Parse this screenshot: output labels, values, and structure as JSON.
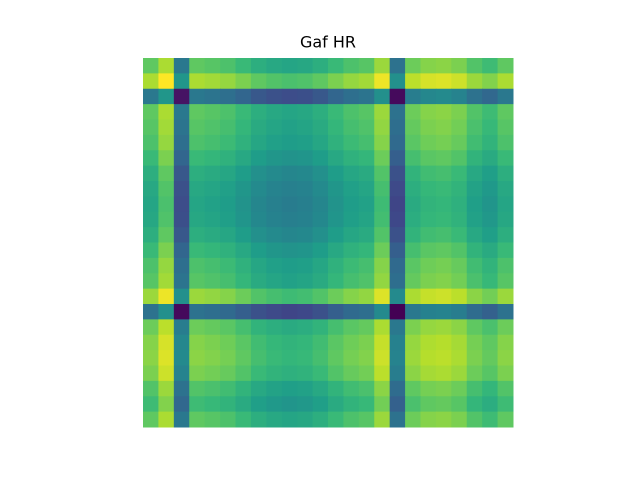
{
  "chart_data": {
    "type": "heatmap",
    "title": "Gaf HR",
    "colormap": "viridis",
    "zlim": [
      0,
      2
    ],
    "z": [
      [
        1.5,
        1.75,
        0.8,
        1.5,
        1.47,
        1.43,
        1.35,
        1.25,
        1.2,
        1.17,
        1.19,
        1.25,
        1.35,
        1.43,
        1.47,
        1.7,
        0.75,
        1.55,
        1.63,
        1.65,
        1.6,
        1.45,
        1.37,
        1.5
      ],
      [
        1.75,
        2.0,
        1.05,
        1.75,
        1.72,
        1.68,
        1.6,
        1.5,
        1.45,
        1.42,
        1.44,
        1.5,
        1.6,
        1.68,
        1.72,
        1.95,
        1.0,
        1.8,
        1.88,
        1.9,
        1.85,
        1.7,
        1.62,
        1.75
      ],
      [
        0.8,
        1.05,
        0.1,
        0.8,
        0.77,
        0.73,
        0.65,
        0.55,
        0.5,
        0.47,
        0.49,
        0.55,
        0.65,
        0.73,
        0.77,
        1.0,
        0.05,
        0.85,
        0.93,
        0.95,
        0.9,
        0.75,
        0.67,
        0.8
      ],
      [
        1.5,
        1.75,
        0.8,
        1.5,
        1.47,
        1.43,
        1.35,
        1.25,
        1.2,
        1.17,
        1.19,
        1.25,
        1.35,
        1.43,
        1.47,
        1.7,
        0.75,
        1.55,
        1.63,
        1.65,
        1.6,
        1.45,
        1.37,
        1.5
      ],
      [
        1.47,
        1.72,
        0.77,
        1.47,
        1.44,
        1.4,
        1.32,
        1.22,
        1.17,
        1.14,
        1.16,
        1.22,
        1.32,
        1.4,
        1.44,
        1.67,
        0.72,
        1.52,
        1.6,
        1.62,
        1.57,
        1.42,
        1.34,
        1.47
      ],
      [
        1.43,
        1.68,
        0.73,
        1.43,
        1.4,
        1.36,
        1.28,
        1.18,
        1.13,
        1.1,
        1.12,
        1.18,
        1.28,
        1.36,
        1.4,
        1.63,
        0.68,
        1.48,
        1.56,
        1.58,
        1.53,
        1.38,
        1.3,
        1.43
      ],
      [
        1.35,
        1.6,
        0.65,
        1.35,
        1.32,
        1.28,
        1.2,
        1.1,
        1.05,
        1.02,
        1.04,
        1.1,
        1.2,
        1.28,
        1.32,
        1.55,
        0.6,
        1.4,
        1.48,
        1.5,
        1.45,
        1.3,
        1.22,
        1.35
      ],
      [
        1.25,
        1.5,
        0.55,
        1.25,
        1.22,
        1.18,
        1.1,
        1.0,
        0.95,
        0.92,
        0.94,
        1.0,
        1.1,
        1.18,
        1.22,
        1.45,
        0.5,
        1.3,
        1.38,
        1.4,
        1.35,
        1.2,
        1.12,
        1.25
      ],
      [
        1.2,
        1.45,
        0.5,
        1.2,
        1.17,
        1.13,
        1.05,
        0.95,
        0.9,
        0.87,
        0.89,
        0.95,
        1.05,
        1.13,
        1.17,
        1.4,
        0.45,
        1.25,
        1.33,
        1.35,
        1.3,
        1.15,
        1.07,
        1.2
      ],
      [
        1.17,
        1.42,
        0.47,
        1.17,
        1.14,
        1.1,
        1.02,
        0.92,
        0.87,
        0.84,
        0.86,
        0.92,
        1.02,
        1.1,
        1.14,
        1.37,
        0.42,
        1.22,
        1.3,
        1.32,
        1.27,
        1.12,
        1.04,
        1.17
      ],
      [
        1.19,
        1.44,
        0.49,
        1.19,
        1.16,
        1.12,
        1.04,
        0.94,
        0.89,
        0.86,
        0.88,
        0.94,
        1.04,
        1.12,
        1.16,
        1.39,
        0.44,
        1.24,
        1.32,
        1.34,
        1.29,
        1.14,
        1.06,
        1.19
      ],
      [
        1.25,
        1.5,
        0.55,
        1.25,
        1.22,
        1.18,
        1.1,
        1.0,
        0.95,
        0.92,
        0.94,
        1.0,
        1.1,
        1.18,
        1.22,
        1.45,
        0.5,
        1.3,
        1.38,
        1.4,
        1.35,
        1.2,
        1.12,
        1.25
      ],
      [
        1.35,
        1.6,
        0.65,
        1.35,
        1.32,
        1.28,
        1.2,
        1.1,
        1.05,
        1.02,
        1.04,
        1.1,
        1.2,
        1.28,
        1.32,
        1.55,
        0.6,
        1.4,
        1.48,
        1.5,
        1.45,
        1.3,
        1.22,
        1.35
      ],
      [
        1.43,
        1.68,
        0.73,
        1.43,
        1.4,
        1.36,
        1.28,
        1.18,
        1.13,
        1.1,
        1.12,
        1.18,
        1.28,
        1.36,
        1.4,
        1.63,
        0.68,
        1.48,
        1.56,
        1.58,
        1.53,
        1.38,
        1.3,
        1.43
      ],
      [
        1.47,
        1.72,
        0.77,
        1.47,
        1.44,
        1.4,
        1.32,
        1.22,
        1.17,
        1.14,
        1.16,
        1.22,
        1.32,
        1.4,
        1.44,
        1.67,
        0.72,
        1.52,
        1.6,
        1.62,
        1.57,
        1.42,
        1.34,
        1.47
      ],
      [
        1.7,
        1.95,
        1.0,
        1.7,
        1.67,
        1.63,
        1.55,
        1.45,
        1.4,
        1.37,
        1.39,
        1.45,
        1.55,
        1.63,
        1.67,
        1.9,
        0.95,
        1.75,
        1.83,
        1.85,
        1.8,
        1.65,
        1.57,
        1.7
      ],
      [
        0.75,
        1.0,
        0.05,
        0.75,
        0.72,
        0.68,
        0.6,
        0.5,
        0.45,
        0.42,
        0.44,
        0.5,
        0.6,
        0.68,
        0.72,
        0.95,
        0.0,
        0.8,
        0.88,
        0.9,
        0.85,
        0.7,
        0.62,
        0.75
      ],
      [
        1.55,
        1.8,
        0.85,
        1.55,
        1.52,
        1.48,
        1.4,
        1.3,
        1.25,
        1.22,
        1.24,
        1.3,
        1.4,
        1.48,
        1.52,
        1.75,
        0.8,
        1.6,
        1.68,
        1.7,
        1.65,
        1.5,
        1.42,
        1.55
      ],
      [
        1.63,
        1.88,
        0.93,
        1.63,
        1.6,
        1.56,
        1.48,
        1.38,
        1.33,
        1.3,
        1.32,
        1.38,
        1.48,
        1.56,
        1.6,
        1.83,
        0.88,
        1.68,
        1.76,
        1.78,
        1.73,
        1.58,
        1.5,
        1.63
      ],
      [
        1.65,
        1.9,
        0.95,
        1.65,
        1.62,
        1.58,
        1.5,
        1.4,
        1.35,
        1.32,
        1.34,
        1.4,
        1.5,
        1.58,
        1.62,
        1.85,
        0.9,
        1.7,
        1.78,
        1.8,
        1.75,
        1.6,
        1.52,
        1.65
      ],
      [
        1.6,
        1.85,
        0.9,
        1.6,
        1.57,
        1.53,
        1.45,
        1.35,
        1.3,
        1.27,
        1.29,
        1.35,
        1.45,
        1.53,
        1.57,
        1.8,
        0.85,
        1.65,
        1.73,
        1.75,
        1.7,
        1.55,
        1.47,
        1.6
      ],
      [
        1.45,
        1.7,
        0.75,
        1.45,
        1.42,
        1.38,
        1.3,
        1.2,
        1.15,
        1.12,
        1.14,
        1.2,
        1.3,
        1.38,
        1.42,
        1.65,
        0.7,
        1.5,
        1.58,
        1.6,
        1.55,
        1.4,
        1.32,
        1.45
      ],
      [
        1.37,
        1.62,
        0.67,
        1.37,
        1.34,
        1.3,
        1.22,
        1.12,
        1.07,
        1.04,
        1.06,
        1.12,
        1.22,
        1.3,
        1.34,
        1.57,
        0.62,
        1.42,
        1.5,
        1.52,
        1.47,
        1.32,
        1.24,
        1.37
      ],
      [
        1.5,
        1.75,
        0.8,
        1.5,
        1.47,
        1.43,
        1.35,
        1.25,
        1.2,
        1.17,
        1.19,
        1.25,
        1.35,
        1.43,
        1.47,
        1.7,
        0.75,
        1.55,
        1.63,
        1.65,
        1.6,
        1.45,
        1.37,
        1.5
      ]
    ]
  }
}
